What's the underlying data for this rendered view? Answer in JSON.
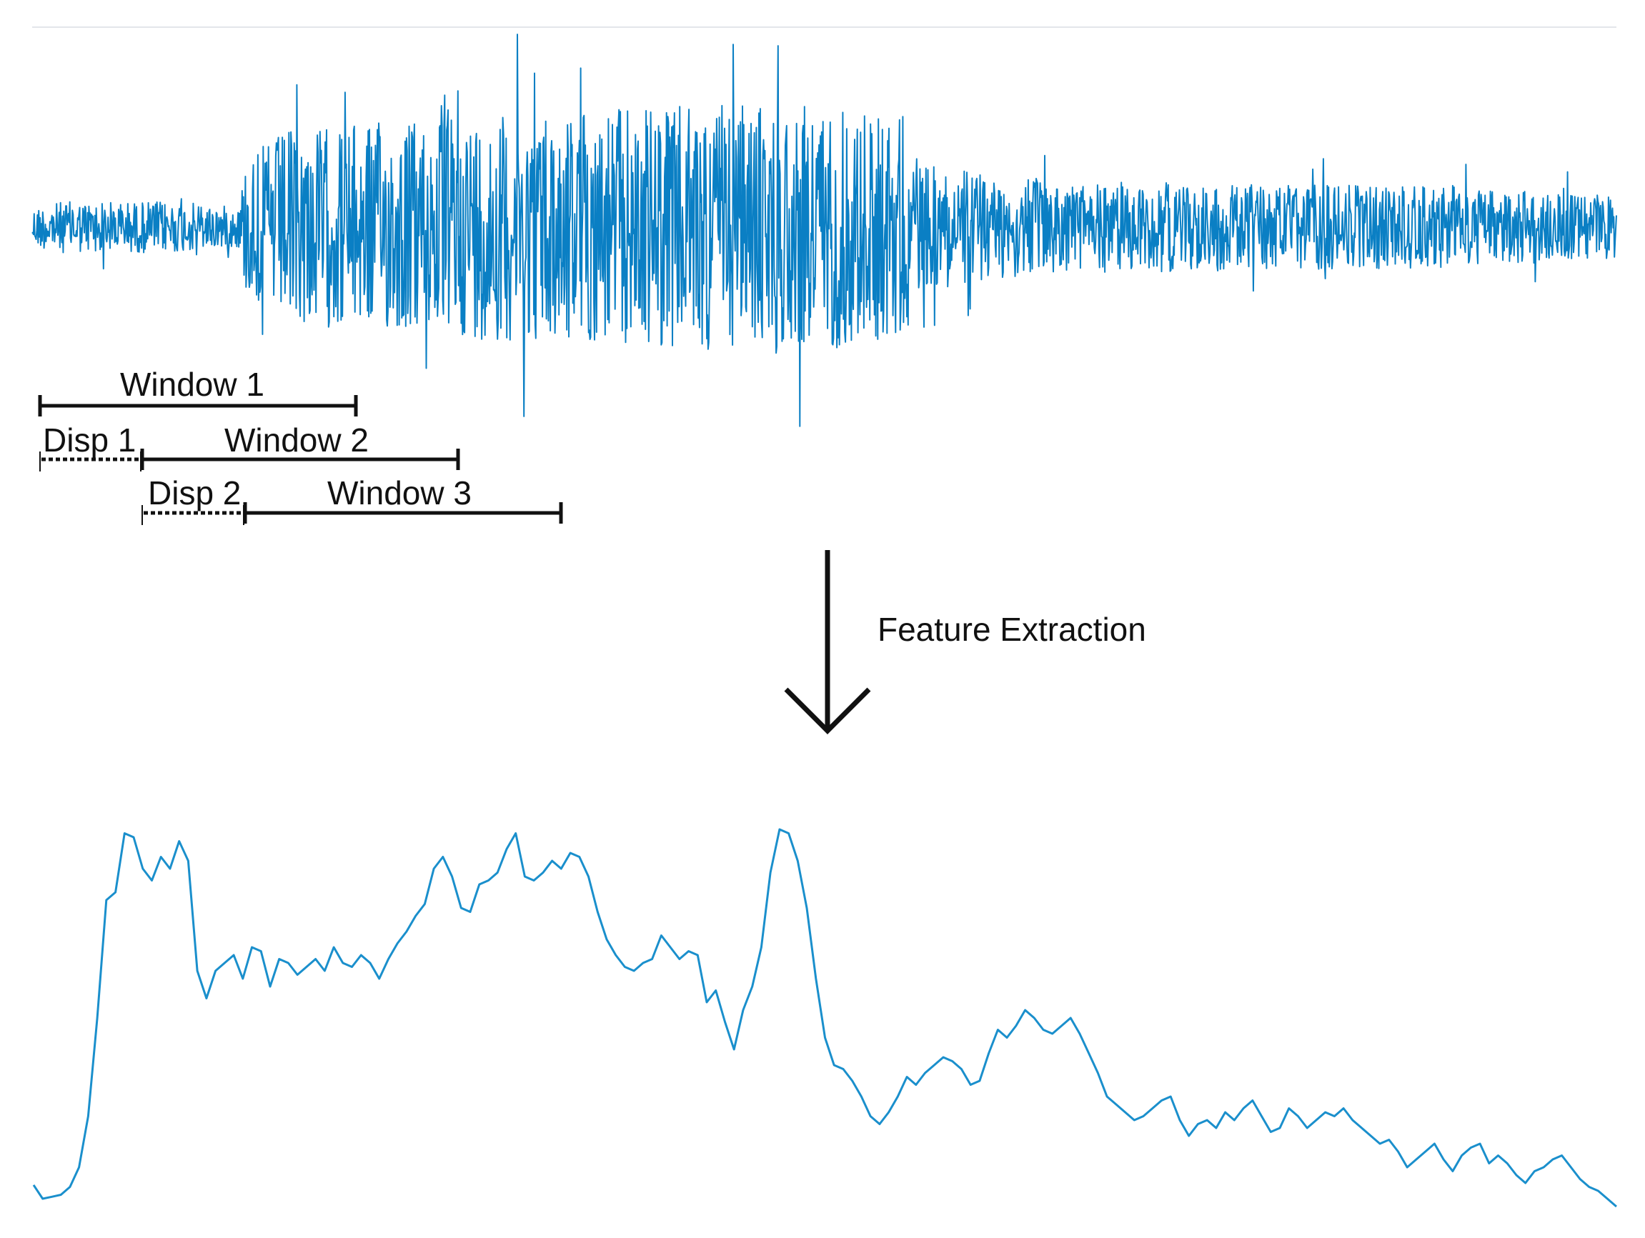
{
  "diagram": {
    "colors": {
      "signal": "#0a7fc4",
      "feature": "#1a8fcc",
      "annotation": "#111111",
      "divider": "#e3e6ea"
    },
    "windows": [
      {
        "label": "Window 1"
      },
      {
        "label": "Window 2"
      },
      {
        "label": "Window 3"
      }
    ],
    "displacements": [
      {
        "label": "Disp 1"
      },
      {
        "label": "Disp 2"
      }
    ],
    "transform": {
      "label": "Feature Extraction",
      "icon": "down-arrow-icon"
    },
    "feature_curve": [
      0.075,
      0.04,
      0.045,
      0.05,
      0.07,
      0.12,
      0.25,
      0.5,
      0.8,
      0.82,
      0.97,
      0.96,
      0.88,
      0.85,
      0.91,
      0.88,
      0.95,
      0.9,
      0.62,
      0.55,
      0.62,
      0.64,
      0.66,
      0.6,
      0.68,
      0.67,
      0.58,
      0.65,
      0.64,
      0.61,
      0.63,
      0.65,
      0.62,
      0.68,
      0.64,
      0.63,
      0.66,
      0.64,
      0.6,
      0.65,
      0.69,
      0.72,
      0.76,
      0.79,
      0.88,
      0.91,
      0.86,
      0.78,
      0.77,
      0.84,
      0.85,
      0.87,
      0.93,
      0.97,
      0.86,
      0.85,
      0.87,
      0.9,
      0.88,
      0.92,
      0.91,
      0.86,
      0.77,
      0.7,
      0.66,
      0.63,
      0.62,
      0.64,
      0.65,
      0.71,
      0.68,
      0.65,
      0.67,
      0.66,
      0.54,
      0.57,
      0.49,
      0.42,
      0.52,
      0.58,
      0.68,
      0.87,
      0.98,
      0.97,
      0.9,
      0.78,
      0.6,
      0.45,
      0.38,
      0.37,
      0.34,
      0.3,
      0.25,
      0.23,
      0.26,
      0.3,
      0.35,
      0.33,
      0.36,
      0.38,
      0.4,
      0.39,
      0.37,
      0.33,
      0.34,
      0.41,
      0.47,
      0.45,
      0.48,
      0.52,
      0.5,
      0.47,
      0.46,
      0.48,
      0.5,
      0.46,
      0.41,
      0.36,
      0.3,
      0.28,
      0.26,
      0.24,
      0.25,
      0.27,
      0.29,
      0.3,
      0.24,
      0.2,
      0.23,
      0.24,
      0.22,
      0.26,
      0.24,
      0.27,
      0.29,
      0.25,
      0.21,
      0.22,
      0.27,
      0.25,
      0.22,
      0.24,
      0.26,
      0.25,
      0.27,
      0.24,
      0.22,
      0.2,
      0.18,
      0.19,
      0.16,
      0.12,
      0.14,
      0.16,
      0.18,
      0.14,
      0.11,
      0.15,
      0.17,
      0.18,
      0.13,
      0.15,
      0.13,
      0.1,
      0.08,
      0.11,
      0.12,
      0.14,
      0.15,
      0.12,
      0.09,
      0.07,
      0.06,
      0.04,
      0.02
    ]
  }
}
